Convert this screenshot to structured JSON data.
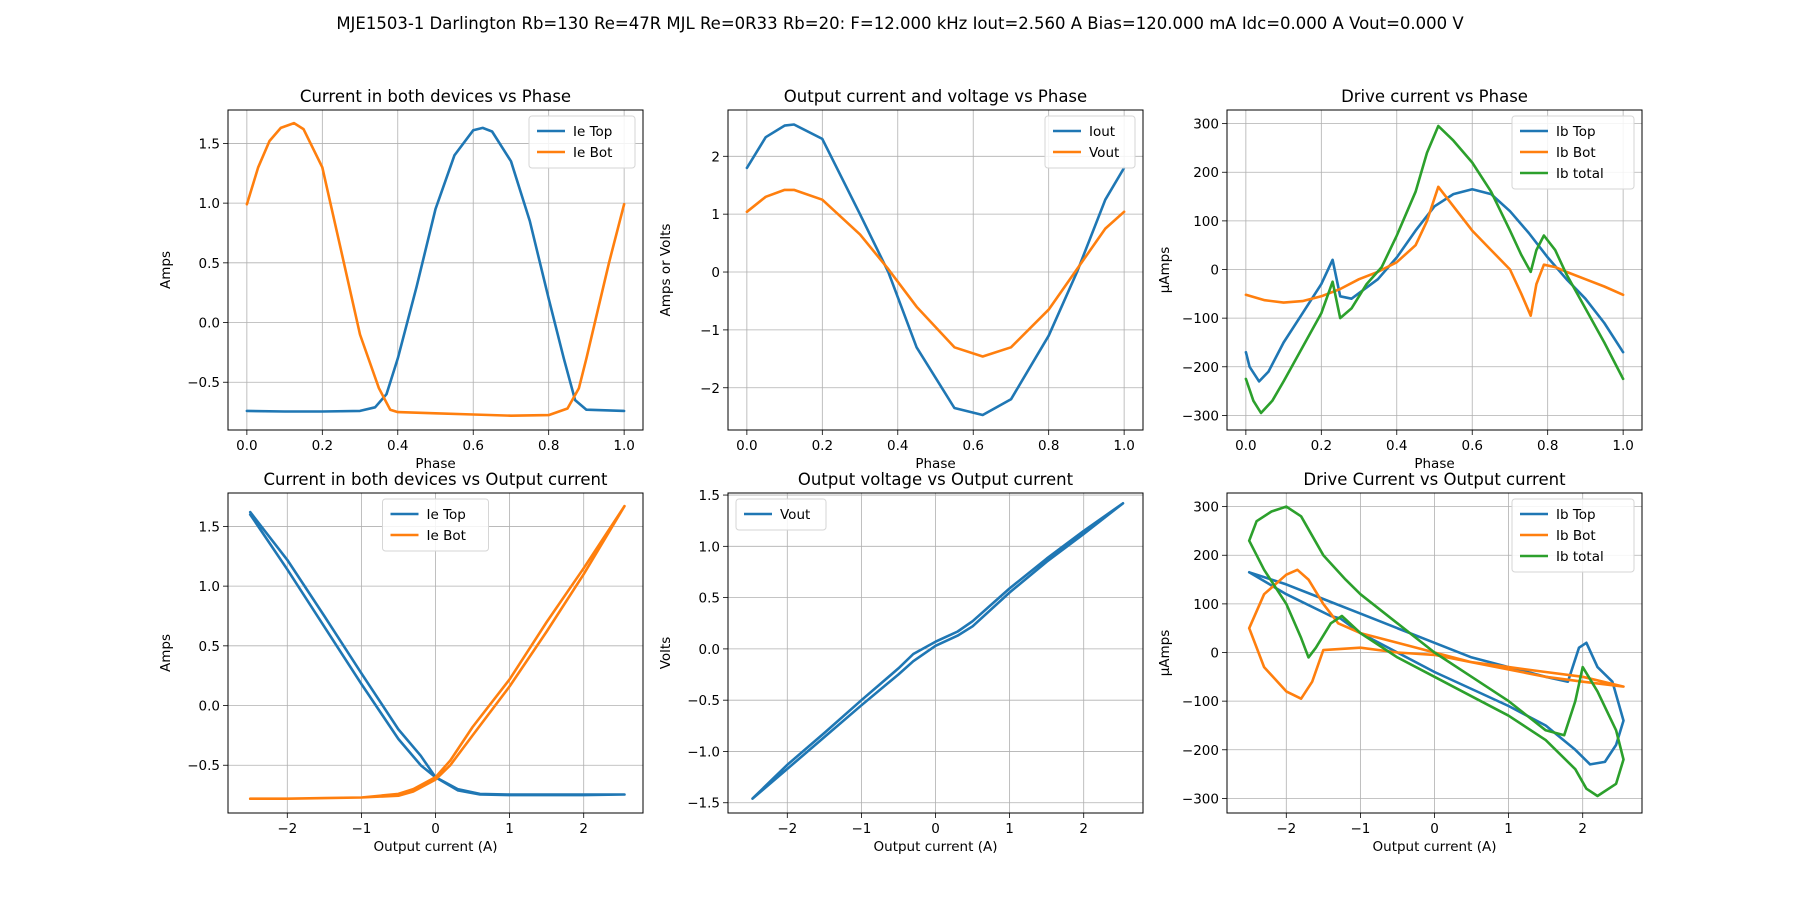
{
  "figure": {
    "title": "MJE1503-1 Darlington Rb=130 Re=47R MJL Re=0R33 Rb=20: F=12.000 kHz Iout=2.560 A Bias=120.000 mA Idc=0.000 A Vout=0.000 V"
  },
  "colors": {
    "blue": "#1f77b4",
    "orange": "#ff7f0e",
    "green": "#2ca02c",
    "grid": "#b0b0b0"
  },
  "chart_data": [
    {
      "type": "line",
      "title": "Current in both devices vs Phase",
      "xlabel": "Phase",
      "ylabel": "Amps",
      "xlim": [
        -0.05,
        1.05
      ],
      "ylim": [
        -0.9,
        1.78
      ],
      "xticks": [
        0.0,
        0.2,
        0.4,
        0.6,
        0.8,
        1.0
      ],
      "xtick_labels": [
        "0.0",
        "0.2",
        "0.4",
        "0.6",
        "0.8",
        "1.0"
      ],
      "yticks": [
        -0.5,
        0.0,
        0.5,
        1.0,
        1.5
      ],
      "ytick_labels": [
        "−0.5",
        "0.0",
        "0.5",
        "1.0",
        "1.5"
      ],
      "grid": true,
      "legend": "upper-right",
      "series": [
        {
          "name": "Ie Top",
          "color": "#1f77b4",
          "x": [
            0,
            0.1,
            0.2,
            0.3,
            0.34,
            0.37,
            0.4,
            0.45,
            0.5,
            0.55,
            0.6,
            0.625,
            0.65,
            0.7,
            0.75,
            0.8,
            0.84,
            0.87,
            0.9,
            1.0
          ],
          "y": [
            -0.74,
            -0.745,
            -0.745,
            -0.74,
            -0.71,
            -0.6,
            -0.3,
            0.3,
            0.95,
            1.4,
            1.61,
            1.63,
            1.6,
            1.35,
            0.85,
            0.2,
            -0.3,
            -0.65,
            -0.73,
            -0.74
          ]
        },
        {
          "name": "Ie Bot",
          "color": "#ff7f0e",
          "x": [
            0,
            0.03,
            0.06,
            0.09,
            0.125,
            0.15,
            0.2,
            0.25,
            0.3,
            0.35,
            0.38,
            0.4,
            0.5,
            0.6,
            0.7,
            0.8,
            0.85,
            0.88,
            0.9,
            0.93,
            0.96,
            1.0
          ],
          "y": [
            0.99,
            1.3,
            1.52,
            1.63,
            1.67,
            1.62,
            1.3,
            0.6,
            -0.1,
            -0.55,
            -0.73,
            -0.75,
            -0.76,
            -0.77,
            -0.78,
            -0.775,
            -0.72,
            -0.55,
            -0.3,
            0.1,
            0.5,
            0.99
          ]
        }
      ]
    },
    {
      "type": "line",
      "title": "Output current and voltage vs Phase",
      "xlabel": "Phase",
      "ylabel": "Amps or Volts",
      "xlim": [
        -0.05,
        1.05
      ],
      "ylim": [
        -2.73,
        2.8
      ],
      "xticks": [
        0.0,
        0.2,
        0.4,
        0.6,
        0.8,
        1.0
      ],
      "xtick_labels": [
        "0.0",
        "0.2",
        "0.4",
        "0.6",
        "0.8",
        "1.0"
      ],
      "yticks": [
        -2,
        -1,
        0,
        1,
        2
      ],
      "ytick_labels": [
        "−2",
        "−1",
        "0",
        "1",
        "2"
      ],
      "grid": true,
      "legend": "upper-right",
      "series": [
        {
          "name": "Iout",
          "color": "#1f77b4",
          "x": [
            0,
            0.05,
            0.1,
            0.125,
            0.2,
            0.3,
            0.375,
            0.45,
            0.55,
            0.625,
            0.7,
            0.8,
            0.875,
            0.95,
            1.0
          ],
          "y": [
            1.8,
            2.33,
            2.53,
            2.55,
            2.3,
            1.0,
            0.0,
            -1.3,
            -2.35,
            -2.47,
            -2.2,
            -1.1,
            0.0,
            1.25,
            1.8
          ]
        },
        {
          "name": "Vout",
          "color": "#ff7f0e",
          "x": [
            0,
            0.05,
            0.1,
            0.125,
            0.2,
            0.3,
            0.375,
            0.45,
            0.55,
            0.625,
            0.7,
            0.8,
            0.875,
            0.95,
            1.0
          ],
          "y": [
            1.04,
            1.3,
            1.42,
            1.42,
            1.25,
            0.65,
            0.05,
            -0.6,
            -1.3,
            -1.46,
            -1.3,
            -0.65,
            0.05,
            0.75,
            1.04
          ]
        }
      ]
    },
    {
      "type": "line",
      "title": "Drive current vs Phase",
      "xlabel": "Phase",
      "ylabel": "µAmps",
      "xlim": [
        -0.05,
        1.05
      ],
      "ylim": [
        -330,
        328
      ],
      "xticks": [
        0.0,
        0.2,
        0.4,
        0.6,
        0.8,
        1.0
      ],
      "xtick_labels": [
        "0.0",
        "0.2",
        "0.4",
        "0.6",
        "0.8",
        "1.0"
      ],
      "yticks": [
        -300,
        -200,
        -100,
        0,
        100,
        200,
        300
      ],
      "ytick_labels": [
        "−300",
        "−200",
        "−100",
        "0",
        "100",
        "200",
        "300"
      ],
      "grid": true,
      "legend": "upper-right",
      "series": [
        {
          "name": "Ib Top",
          "color": "#1f77b4",
          "x": [
            0,
            0.01,
            0.035,
            0.06,
            0.1,
            0.15,
            0.2,
            0.23,
            0.25,
            0.28,
            0.35,
            0.4,
            0.45,
            0.5,
            0.55,
            0.6,
            0.65,
            0.7,
            0.75,
            0.8,
            0.85,
            0.9,
            0.95,
            1.0
          ],
          "y": [
            -170,
            -200,
            -230,
            -210,
            -150,
            -90,
            -30,
            20,
            -55,
            -60,
            -20,
            25,
            80,
            130,
            155,
            165,
            155,
            120,
            75,
            25,
            -20,
            -60,
            -110,
            -170
          ]
        },
        {
          "name": "Ib Bot",
          "color": "#ff7f0e",
          "x": [
            0,
            0.05,
            0.1,
            0.15,
            0.2,
            0.25,
            0.3,
            0.35,
            0.4,
            0.45,
            0.48,
            0.51,
            0.55,
            0.6,
            0.65,
            0.7,
            0.73,
            0.755,
            0.77,
            0.79,
            0.82,
            0.85,
            0.9,
            0.95,
            1.0
          ],
          "y": [
            -52,
            -63,
            -68,
            -65,
            -55,
            -40,
            -20,
            -5,
            15,
            50,
            100,
            170,
            130,
            80,
            40,
            0,
            -50,
            -95,
            -30,
            10,
            5,
            -5,
            -20,
            -35,
            -52
          ]
        },
        {
          "name": "Ib total",
          "color": "#2ca02c",
          "x": [
            0,
            0.02,
            0.04,
            0.07,
            0.1,
            0.15,
            0.2,
            0.23,
            0.25,
            0.28,
            0.32,
            0.36,
            0.4,
            0.45,
            0.48,
            0.51,
            0.55,
            0.6,
            0.65,
            0.7,
            0.73,
            0.755,
            0.77,
            0.79,
            0.82,
            0.85,
            0.9,
            0.95,
            1.0
          ],
          "y": [
            -225,
            -270,
            -295,
            -270,
            -230,
            -160,
            -90,
            -25,
            -100,
            -80,
            -30,
            5,
            70,
            160,
            240,
            295,
            265,
            220,
            160,
            80,
            30,
            -5,
            40,
            70,
            40,
            -10,
            -80,
            -150,
            -225
          ]
        }
      ]
    },
    {
      "type": "line",
      "title": "Current in both devices vs Output current",
      "xlabel": "Output current (A)",
      "ylabel": "Amps",
      "xlim": [
        -2.8,
        2.8
      ],
      "ylim": [
        -0.9,
        1.78
      ],
      "xticks": [
        -2,
        -1,
        0,
        1,
        2
      ],
      "xtick_labels": [
        "−2",
        "−1",
        "0",
        "1",
        "2"
      ],
      "yticks": [
        -0.5,
        0.0,
        0.5,
        1.0,
        1.5
      ],
      "ytick_labels": [
        "−0.5",
        "0.0",
        "0.5",
        "1.0",
        "1.5"
      ],
      "grid": true,
      "legend": "top-center",
      "series": [
        {
          "name": "Ie Top",
          "color": "#1f77b4",
          "x": [
            -2.5,
            -2.0,
            -1.5,
            -1.0,
            -0.5,
            -0.2,
            0.0,
            0.3,
            0.6,
            1.0,
            1.5,
            2.0,
            2.55,
            2.0,
            1.5,
            1.0,
            0.6,
            0.3,
            0.0,
            -0.2,
            -0.5,
            -1.0,
            -1.5,
            -2.0,
            -2.5
          ],
          "y": [
            1.62,
            1.22,
            0.75,
            0.27,
            -0.2,
            -0.42,
            -0.6,
            -0.7,
            -0.74,
            -0.745,
            -0.745,
            -0.745,
            -0.745,
            -0.75,
            -0.75,
            -0.75,
            -0.745,
            -0.71,
            -0.6,
            -0.5,
            -0.28,
            0.18,
            0.66,
            1.14,
            1.6
          ]
        },
        {
          "name": "Ie Bot",
          "color": "#ff7f0e",
          "x": [
            -2.5,
            -2.0,
            -1.5,
            -1.0,
            -0.5,
            -0.3,
            0.0,
            0.2,
            0.5,
            1.0,
            1.5,
            2.0,
            2.55,
            2.0,
            1.5,
            1.0,
            0.5,
            0.2,
            0.0,
            -0.3,
            -0.5,
            -1.0,
            -1.5,
            -2.0,
            -2.5
          ],
          "y": [
            -0.78,
            -0.78,
            -0.775,
            -0.77,
            -0.74,
            -0.7,
            -0.6,
            -0.46,
            -0.18,
            0.22,
            0.7,
            1.15,
            1.67,
            1.1,
            0.62,
            0.16,
            -0.25,
            -0.5,
            -0.62,
            -0.72,
            -0.755,
            -0.77,
            -0.775,
            -0.78,
            -0.78
          ]
        }
      ]
    },
    {
      "type": "line",
      "title": "Output voltage vs Output current",
      "xlabel": "Output current (A)",
      "ylabel": "Volts",
      "xlim": [
        -2.8,
        2.8
      ],
      "ylim": [
        -1.6,
        1.52
      ],
      "xticks": [
        -2,
        -1,
        0,
        1,
        2
      ],
      "xtick_labels": [
        "−2",
        "−1",
        "0",
        "1",
        "2"
      ],
      "yticks": [
        -1.5,
        -1.0,
        -0.5,
        0.0,
        0.5,
        1.0,
        1.5
      ],
      "ytick_labels": [
        "−1.5",
        "−1.0",
        "−0.5",
        "0.0",
        "0.5",
        "1.0",
        "1.5"
      ],
      "grid": true,
      "legend": "upper-left",
      "series": [
        {
          "name": "Vout",
          "color": "#1f77b4",
          "x": [
            -2.47,
            -2.0,
            -1.5,
            -1.0,
            -0.5,
            -0.3,
            0.0,
            0.3,
            0.5,
            1.0,
            1.5,
            2.0,
            2.53,
            2.0,
            1.5,
            1.0,
            0.5,
            0.3,
            0.0,
            -0.3,
            -0.5,
            -1.0,
            -1.5,
            -2.0,
            -2.47
          ],
          "y": [
            -1.46,
            -1.17,
            -0.86,
            -0.55,
            -0.25,
            -0.12,
            0.03,
            0.13,
            0.22,
            0.55,
            0.85,
            1.12,
            1.42,
            1.15,
            0.88,
            0.59,
            0.27,
            0.17,
            0.07,
            -0.05,
            -0.19,
            -0.5,
            -0.82,
            -1.13,
            -1.46
          ]
        }
      ]
    },
    {
      "type": "line",
      "title": "Drive Current vs Output current",
      "xlabel": "Output current (A)",
      "ylabel": "µAmps",
      "xlim": [
        -2.8,
        2.8
      ],
      "ylim": [
        -330,
        328
      ],
      "xticks": [
        -2,
        -1,
        0,
        1,
        2
      ],
      "xtick_labels": [
        "−2",
        "−1",
        "0",
        "1",
        "2"
      ],
      "yticks": [
        -300,
        -200,
        -100,
        0,
        100,
        200,
        300
      ],
      "ytick_labels": [
        "−300",
        "−200",
        "−100",
        "0",
        "100",
        "200",
        "300"
      ],
      "grid": true,
      "legend": "upper-right",
      "series": [
        {
          "name": "Ib Top",
          "color": "#1f77b4",
          "x": [
            -2.5,
            -2.0,
            -1.5,
            -1.0,
            -0.5,
            0.0,
            0.5,
            1.0,
            1.5,
            1.8,
            1.95,
            2.05,
            2.2,
            2.4,
            2.55,
            2.45,
            2.3,
            2.1,
            1.9,
            1.5,
            1.0,
            0.5,
            0.0,
            -0.5,
            -1.0,
            -1.27,
            -1.4,
            -2.0,
            -2.5
          ],
          "y": [
            165,
            140,
            110,
            80,
            50,
            20,
            -10,
            -30,
            -50,
            -60,
            10,
            20,
            -30,
            -60,
            -140,
            -190,
            -225,
            -230,
            -200,
            -150,
            -110,
            -75,
            -40,
            0,
            40,
            70,
            75,
            120,
            165
          ]
        },
        {
          "name": "Ib Bot",
          "color": "#ff7f0e",
          "x": [
            -2.5,
            -2.3,
            -2.0,
            -1.85,
            -1.7,
            -1.5,
            -1.3,
            -1.0,
            -0.5,
            0.0,
            0.5,
            1.0,
            1.5,
            2.0,
            2.55,
            2.0,
            1.5,
            1.0,
            0.5,
            0.0,
            -0.5,
            -1.0,
            -1.5,
            -1.65,
            -1.8,
            -2.0,
            -2.3,
            -2.5
          ],
          "y": [
            50,
            120,
            160,
            170,
            150,
            100,
            60,
            40,
            20,
            0,
            -20,
            -30,
            -40,
            -50,
            -70,
            -60,
            -50,
            -35,
            -20,
            -5,
            0,
            10,
            5,
            -60,
            -95,
            -80,
            -30,
            50
          ]
        },
        {
          "name": "Ib total",
          "color": "#2ca02c",
          "x": [
            -2.5,
            -2.4,
            -2.2,
            -2.0,
            -1.8,
            -1.5,
            -1.2,
            -1.0,
            -0.5,
            0.0,
            0.5,
            1.0,
            1.5,
            1.75,
            1.9,
            2.0,
            2.2,
            2.45,
            2.55,
            2.45,
            2.2,
            2.05,
            1.9,
            1.5,
            1.0,
            0.5,
            0.0,
            -0.5,
            -1.0,
            -1.25,
            -1.4,
            -1.6,
            -1.7,
            -1.8,
            -2.0,
            -2.3,
            -2.5
          ],
          "y": [
            230,
            270,
            290,
            300,
            280,
            200,
            150,
            120,
            60,
            0,
            -50,
            -100,
            -160,
            -170,
            -100,
            -30,
            -80,
            -160,
            -220,
            -270,
            -295,
            -280,
            -240,
            -180,
            -130,
            -90,
            -50,
            -10,
            40,
            75,
            60,
            10,
            -10,
            30,
            100,
            170,
            230
          ]
        }
      ]
    }
  ]
}
